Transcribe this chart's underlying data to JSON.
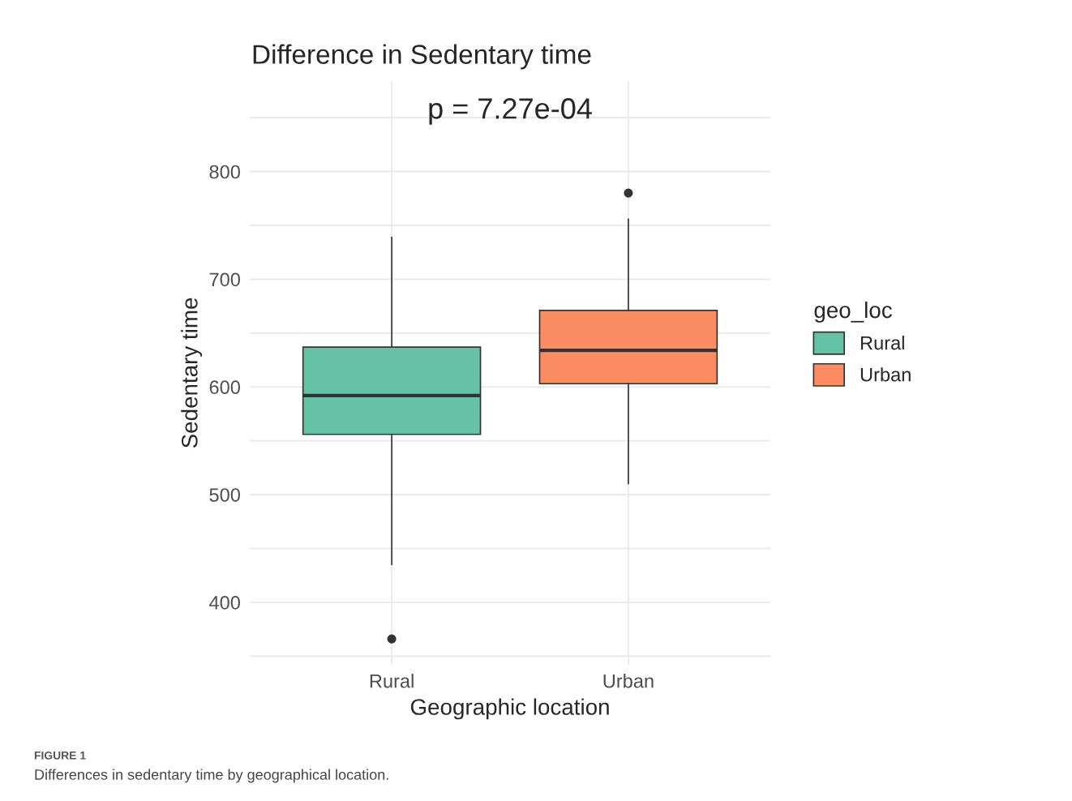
{
  "chart_data": {
    "type": "box",
    "title": "Difference in Sedentary time",
    "xlabel": "Geographic location",
    "ylabel": "Sedentary time",
    "legend_title": "geo_loc",
    "legend": "right",
    "categories": [
      "Rural",
      "Urban"
    ],
    "series": [
      {
        "name": "Rural",
        "color": "#66c2a5",
        "boxes": [
          {
            "low": 435,
            "q1": 556,
            "median": 592,
            "q3": 637,
            "high": 739,
            "outliers": [
              366
            ]
          },
          null
        ]
      },
      {
        "name": "Urban",
        "color": "#fc8d62",
        "boxes": [
          null,
          {
            "low": 510,
            "q1": 603,
            "median": 634,
            "q3": 671,
            "high": 756,
            "outliers": [
              780
            ]
          }
        ]
      }
    ],
    "ylim": [
      342,
      884
    ],
    "yticks": [
      {
        "value": 350,
        "label": null
      },
      400,
      {
        "value": 450,
        "label": null
      },
      500,
      {
        "value": 550,
        "label": null
      },
      600,
      {
        "value": 650,
        "label": null
      },
      700,
      {
        "value": 750,
        "label": null
      },
      800,
      {
        "value": 850,
        "label": null
      }
    ],
    "grid": true,
    "annotations": [
      "p = 7.27e-04",
      "FIGURE 1",
      "Differences in sedentary time by geographical location."
    ]
  }
}
